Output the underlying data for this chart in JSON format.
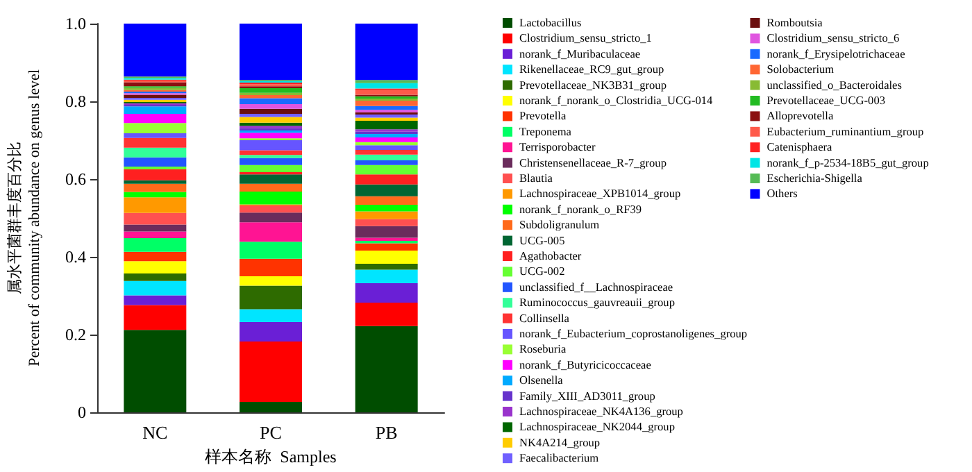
{
  "chart_data": {
    "type": "bar",
    "stacked": true,
    "xlabel": "样本名称  Samples",
    "ylabel": "属水平菌群丰度百分比\nPercent of community abundance on genus level",
    "categories": [
      "NC",
      "PC",
      "PB"
    ],
    "ylim": [
      0,
      1
    ],
    "yticks": [
      0,
      0.2,
      0.4,
      0.6,
      0.8,
      {
        "value": 1,
        "label": "1.0"
      }
    ],
    "grid": false,
    "legend": "right",
    "series": [
      {
        "name": "Lactobacillus",
        "color": "#004d00",
        "values": [
          0.212,
          0.027,
          0.222
        ]
      },
      {
        "name": "Clostridium_sensu_stricto_1",
        "color": "#ff0000",
        "values": [
          0.064,
          0.155,
          0.06
        ]
      },
      {
        "name": "norank_f_Muribaculaceae",
        "color": "#6a1fd6",
        "values": [
          0.025,
          0.05,
          0.05
        ]
      },
      {
        "name": "Rikenellaceae_RC9_gut_group",
        "color": "#00e5ff",
        "values": [
          0.037,
          0.033,
          0.035
        ]
      },
      {
        "name": "Prevotellaceae_NK3B31_group",
        "color": "#2e6b00",
        "values": [
          0.019,
          0.061,
          0.015
        ]
      },
      {
        "name": "norank_f_norank_o_Clostridia_UCG-014",
        "color": "#ffff00",
        "values": [
          0.032,
          0.024,
          0.034
        ]
      },
      {
        "name": "Prevotella",
        "color": "#ff3300",
        "values": [
          0.024,
          0.045,
          0.019
        ]
      },
      {
        "name": "Treponema",
        "color": "#00ff66",
        "values": [
          0.035,
          0.044,
          0.006
        ]
      },
      {
        "name": "Terrisporobacter",
        "color": "#ff1493",
        "values": [
          0.017,
          0.05,
          0.008
        ]
      },
      {
        "name": "Christensenellaceae_R-7_group",
        "color": "#6b2c5c",
        "values": [
          0.018,
          0.025,
          0.03
        ]
      },
      {
        "name": "Blautia",
        "color": "#ff5050",
        "values": [
          0.03,
          0.018,
          0.018
        ]
      },
      {
        "name": "Lachnospiraceae_XPB1014_group",
        "color": "#ff9900",
        "values": [
          0.04,
          0.003,
          0.02
        ]
      },
      {
        "name": "norank_f_norank_o_RF39",
        "color": "#00ff00",
        "values": [
          0.014,
          0.033,
          0.017
        ]
      },
      {
        "name": "Subdoligranulum",
        "color": "#ff6a1a",
        "values": [
          0.021,
          0.02,
          0.022
        ]
      },
      {
        "name": "UCG-005",
        "color": "#006633",
        "values": [
          0.009,
          0.024,
          0.03
        ]
      },
      {
        "name": "Agathobacter",
        "color": "#ff2020",
        "values": [
          0.028,
          0.006,
          0.026
        ]
      },
      {
        "name": "UCG-002",
        "color": "#66ff33",
        "values": [
          0.007,
          0.018,
          0.024
        ]
      },
      {
        "name": "unclassified_f__Lachnospiraceae",
        "color": "#2255ff",
        "values": [
          0.024,
          0.018,
          0.012
        ]
      },
      {
        "name": "Ruminococcus_gauvreauii_group",
        "color": "#33ff99",
        "values": [
          0.025,
          0.008,
          0.015
        ]
      },
      {
        "name": "Collinsella",
        "color": "#ff3333",
        "values": [
          0.025,
          0.012,
          0.012
        ]
      },
      {
        "name": "norank_f_Eubacterium_coprostanoligenes_group",
        "color": "#6655ff",
        "values": [
          0.012,
          0.026,
          0.012
        ]
      },
      {
        "name": "Roseburia",
        "color": "#99ff33",
        "values": [
          0.026,
          0.005,
          0.008
        ]
      },
      {
        "name": "norank_f_Butyricicoccaceae",
        "color": "#ff00ff",
        "values": [
          0.024,
          0.014,
          0.012
        ]
      },
      {
        "name": "Olsenella",
        "color": "#00aaff",
        "values": [
          0.019,
          0.006,
          0.009
        ]
      },
      {
        "name": "Family_XIII_AD3011_group",
        "color": "#6633cc",
        "values": [
          0.004,
          0.006,
          0.006
        ]
      },
      {
        "name": "Lachnospiraceae_NK4A136_group",
        "color": "#9933cc",
        "values": [
          0.004,
          0.006,
          0.006
        ]
      },
      {
        "name": "Lachnospiraceae_NK2044_group",
        "color": "#006600",
        "values": [
          0.003,
          0.008,
          0.022
        ]
      },
      {
        "name": "NK4A214_group",
        "color": "#ffcc00",
        "values": [
          0.006,
          0.015,
          0.008
        ]
      },
      {
        "name": "Faecalibacterium",
        "color": "#7060ff",
        "values": [
          0.005,
          0.008,
          0.008
        ]
      },
      {
        "name": "Romboutsia",
        "color": "#6b0f0f",
        "values": [
          0.008,
          0.013,
          0.006
        ]
      },
      {
        "name": "Clostridium_sensu_stricto_6",
        "color": "#e055e0",
        "values": [
          0.004,
          0.012,
          0.006
        ]
      },
      {
        "name": "norank_f_Erysipelotrichaceae",
        "color": "#1a6aff",
        "values": [
          0.004,
          0.015,
          0.01
        ]
      },
      {
        "name": "Solobacterium",
        "color": "#ff6633",
        "values": [
          0.004,
          0.008,
          0.014
        ]
      },
      {
        "name": "unclassified_o_Bacteroidales",
        "color": "#88bb33",
        "values": [
          0.006,
          0.006,
          0.005
        ]
      },
      {
        "name": "Prevotellaceae_UCG-003",
        "color": "#22bb22",
        "values": [
          0.004,
          0.012,
          0.006
        ]
      },
      {
        "name": "Alloprevotella",
        "color": "#8b1010",
        "values": [
          0.01,
          0.005,
          0.004
        ]
      },
      {
        "name": "Eubacterium_ruminantium_group",
        "color": "#ff5a4a",
        "values": [
          0.004,
          0.005,
          0.012
        ]
      },
      {
        "name": "Catenisphaera",
        "color": "#ff2222",
        "values": [
          0.003,
          0.004,
          0.004
        ]
      },
      {
        "name": "norank_f_p-2534-18B5_gut_group",
        "color": "#00e5e5",
        "values": [
          0.004,
          0.004,
          0.014
        ]
      },
      {
        "name": "Escherichia-Shigella",
        "color": "#55bb55",
        "values": [
          0.004,
          0.003,
          0.008
        ]
      },
      {
        "name": "Others",
        "color": "#0000ff",
        "values": [
          0.136,
          0.145,
          0.145
        ]
      }
    ]
  }
}
